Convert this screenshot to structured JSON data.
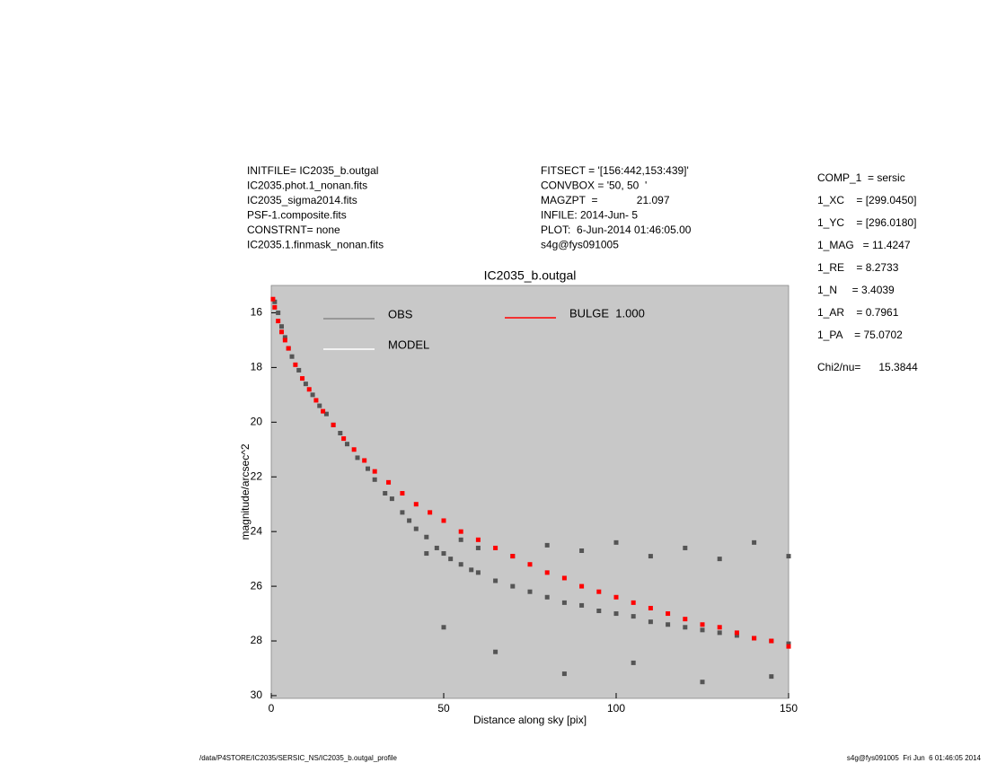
{
  "chart_data": {
    "type": "scatter",
    "title": "IC2035_b.outgal",
    "x_label": "Distance along sky [pix]",
    "y_label": "magnitude/arcsec^2",
    "xlim": [
      0,
      150
    ],
    "xticks": [
      0,
      50,
      100,
      150
    ],
    "ylim": [
      30.1,
      15
    ],
    "yticks": [
      16,
      18,
      20,
      22,
      24,
      26,
      28,
      30
    ],
    "plot_background": "#c8c8c8",
    "annotations": {
      "left": [
        "INITFILE= IC2035_b.outgal",
        "IC2035.phot.1_nonan.fits",
        "IC2035_sigma2014.fits",
        "PSF-1.composite.fits",
        "CONSTRNT= none",
        "IC2035.1.finmask_nonan.fits"
      ],
      "middle": [
        "FITSECT = '[156:442,153:439]'",
        "CONVBOX = '50, 50  '",
        "MAGZPT  =             21.097",
        "INFILE: 2014-Jun- 5",
        "PLOT:  6-Jun-2014 01:46:05.00",
        "s4g@fys091005"
      ],
      "right": [
        "COMP_1  = sersic",
        "1_XC    = [299.0450]",
        "1_YC    = [296.0180]",
        "1_MAG   = 11.4247",
        "1_RE    = 8.2733",
        "1_N     = 3.4039",
        "1_AR    = 0.7961",
        "1_PA    = 75.0702",
        "Chi2/nu=      15.3844"
      ]
    },
    "footer_left": "/data/P4STORE/IC2035/SERSIC_NS/IC2035_b.outgal_profile",
    "footer_right": "s4g@fys091005  Fri Jun  6 01:46:05 2014",
    "series": [
      {
        "name": "OBS",
        "color": "#555555",
        "legend_color": "#888888",
        "x": [
          1,
          2,
          3,
          4,
          5,
          6,
          8,
          10,
          12,
          14,
          16,
          18,
          20,
          22,
          25,
          28,
          30,
          33,
          35,
          38,
          40,
          42,
          45,
          48,
          50,
          52,
          55,
          58,
          60,
          65,
          70,
          75,
          80,
          85,
          90,
          95,
          100,
          105,
          110,
          115,
          120,
          125,
          130,
          135,
          140,
          145,
          150,
          45,
          55,
          60,
          70,
          80,
          90,
          100,
          110,
          120,
          130,
          140,
          150,
          50,
          65,
          85,
          105,
          125,
          145
        ],
        "values": [
          15.6,
          16.0,
          16.5,
          16.9,
          17.3,
          17.6,
          18.1,
          18.6,
          19.0,
          19.4,
          19.7,
          20.1,
          20.4,
          20.8,
          21.3,
          21.7,
          22.1,
          22.6,
          22.8,
          23.3,
          23.6,
          23.9,
          24.2,
          24.6,
          24.8,
          25.0,
          25.2,
          25.4,
          25.5,
          25.8,
          26.0,
          26.2,
          26.4,
          26.6,
          26.7,
          26.9,
          27.0,
          27.1,
          27.3,
          27.4,
          27.5,
          27.6,
          27.7,
          27.8,
          27.9,
          28.0,
          28.1,
          24.8,
          24.3,
          24.6,
          24.9,
          24.5,
          24.7,
          24.4,
          24.9,
          24.6,
          25.0,
          24.4,
          24.9,
          27.5,
          28.4,
          29.2,
          28.8,
          29.5,
          29.3
        ]
      },
      {
        "name": "MODEL",
        "color": "#ffffff",
        "legend_color": "#ffffff",
        "x": [],
        "values": []
      },
      {
        "name": "BULGE  1.000",
        "color": "#ff0000",
        "legend_color": "#ff0000",
        "x": [
          0.5,
          1,
          2,
          3,
          4,
          5,
          7,
          9,
          11,
          13,
          15,
          18,
          21,
          24,
          27,
          30,
          34,
          38,
          42,
          46,
          50,
          55,
          60,
          65,
          70,
          75,
          80,
          85,
          90,
          95,
          100,
          105,
          110,
          115,
          120,
          125,
          130,
          135,
          140,
          145,
          150
        ],
        "values": [
          15.5,
          15.8,
          16.3,
          16.7,
          17.0,
          17.3,
          17.9,
          18.4,
          18.8,
          19.2,
          19.6,
          20.1,
          20.6,
          21.0,
          21.4,
          21.8,
          22.2,
          22.6,
          23.0,
          23.3,
          23.6,
          24.0,
          24.3,
          24.6,
          24.9,
          25.2,
          25.5,
          25.7,
          26.0,
          26.2,
          26.4,
          26.6,
          26.8,
          27.0,
          27.2,
          27.4,
          27.5,
          27.7,
          27.9,
          28.0,
          28.2
        ]
      }
    ]
  }
}
